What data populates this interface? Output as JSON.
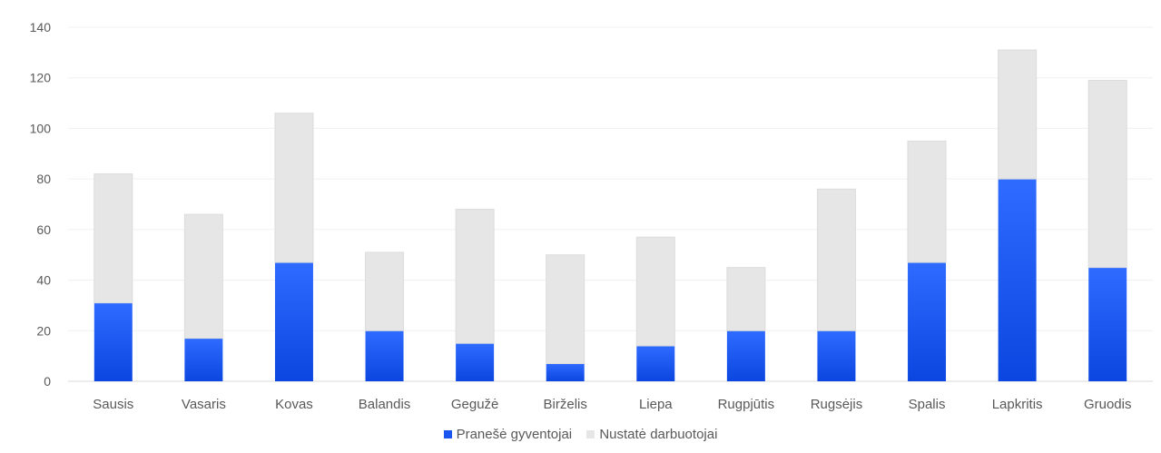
{
  "chart_data": {
    "type": "bar",
    "stacked": true,
    "categories": [
      "Sausis",
      "Vasaris",
      "Kovas",
      "Balandis",
      "Gegužė",
      "Birželis",
      "Liepa",
      "Rugpjūtis",
      "Rugsėjis",
      "Spalis",
      "Lapkritis",
      "Gruodis"
    ],
    "series": [
      {
        "name": "Pranešė gyventojai",
        "color": "#1a55f0",
        "values": [
          31,
          17,
          47,
          20,
          15,
          7,
          14,
          20,
          20,
          47,
          80,
          45
        ]
      },
      {
        "name": "Nustatė darbuotojai",
        "color": "#e6e6e6",
        "values": [
          51,
          49,
          59,
          31,
          53,
          43,
          43,
          25,
          56,
          48,
          51,
          74
        ]
      }
    ],
    "ylim": [
      0,
      140
    ],
    "yticks": [
      0,
      20,
      40,
      60,
      80,
      100,
      120,
      140
    ],
    "grid": true,
    "legend_position": "bottom"
  }
}
